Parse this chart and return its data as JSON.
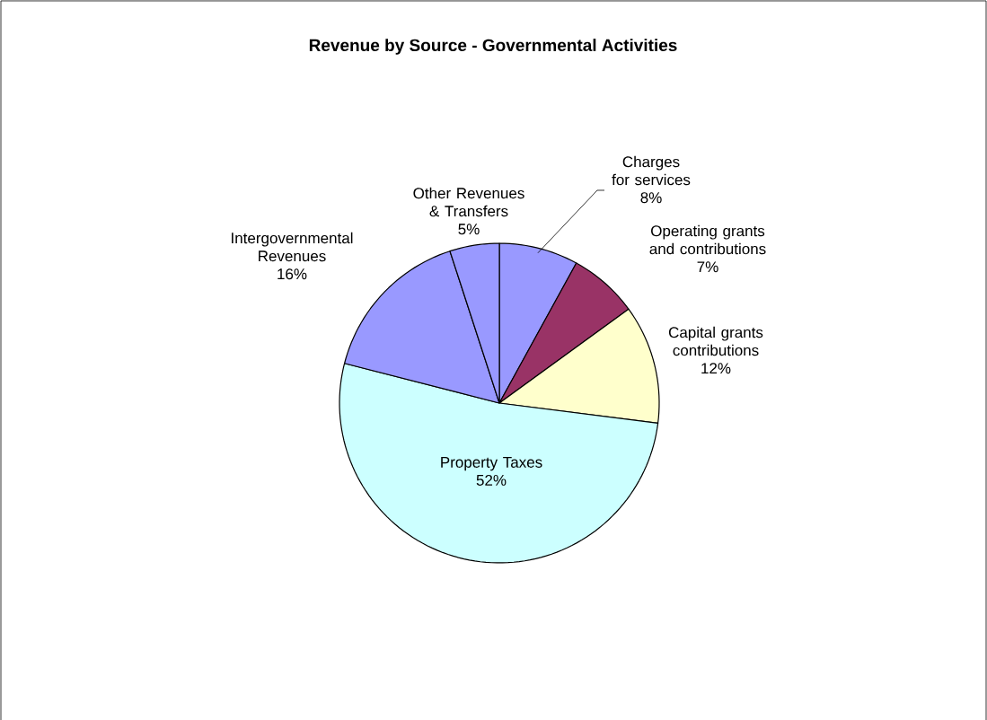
{
  "chart_data": {
    "type": "pie",
    "title": "Revenue by Source - Governmental Activities",
    "categories": [
      "Charges for services",
      "Operating grants and contributions",
      "Capital grants contributions",
      "Property Taxes",
      "Intergovernmental Revenues",
      "Other Revenues & Transfers"
    ],
    "values": [
      8,
      7,
      12,
      52,
      16,
      5
    ],
    "value_labels": [
      "8%",
      "7%",
      "12%",
      "52%",
      "16%",
      "5%"
    ],
    "colors": [
      "#9999ff",
      "#993366",
      "#ffffcc",
      "#ccffff",
      "#9999ff",
      "#9999ff"
    ]
  }
}
